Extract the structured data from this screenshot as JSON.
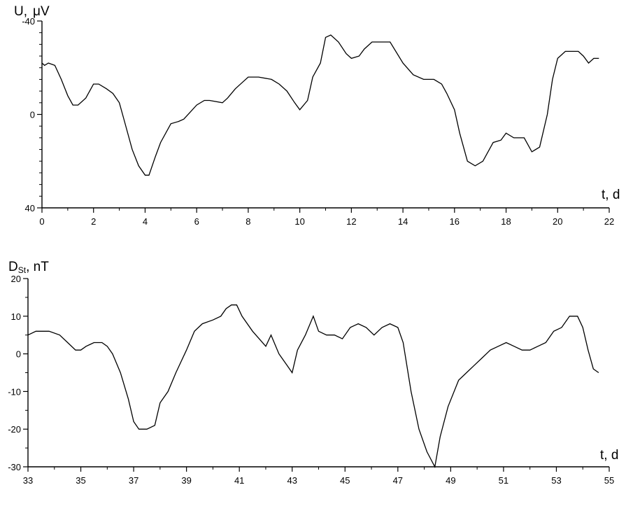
{
  "chart_data": [
    {
      "type": "line",
      "ylabel_main": "U,",
      "ylabel_unit": "μV",
      "xlabel": "t, d",
      "xlim": [
        0,
        22
      ],
      "ylim": [
        40,
        -40
      ],
      "x_ticks": [
        0,
        2,
        4,
        6,
        8,
        10,
        12,
        14,
        16,
        18,
        20,
        22
      ],
      "y_ticks": [
        -40,
        0,
        40
      ],
      "series": [
        {
          "x": [
            0,
            0.1,
            0.25,
            0.5,
            0.75,
            1.0,
            1.2,
            1.4,
            1.7,
            2.0,
            2.2,
            2.5,
            2.75,
            3.0,
            3.2,
            3.5,
            3.75,
            4.0,
            4.15,
            4.4,
            4.6,
            5.0,
            5.3,
            5.5,
            6.0,
            6.3,
            6.5,
            7.0,
            7.2,
            7.5,
            7.8,
            8.0,
            8.4,
            8.9,
            9.2,
            9.5,
            9.8,
            10.0,
            10.3,
            10.5,
            10.8,
            11.0,
            11.2,
            11.5,
            11.8,
            12.0,
            12.3,
            12.5,
            12.8,
            13.5,
            14.0,
            14.4,
            14.8,
            15.2,
            15.5,
            15.7,
            16.0,
            16.2,
            16.5,
            16.8,
            17.1,
            17.5,
            17.8,
            18.0,
            18.3,
            18.7,
            19.0,
            19.3,
            19.6,
            19.8,
            20.0,
            20.3,
            20.5,
            20.8,
            21.0,
            21.2,
            21.4,
            21.6
          ],
          "y": [
            -22,
            -21,
            -22,
            -21,
            -15,
            -8,
            -4,
            -4,
            -7,
            -13,
            -13,
            -11,
            -9,
            -5,
            3,
            15,
            22,
            26,
            26,
            18,
            12,
            4,
            3,
            2,
            -4,
            -6,
            -6,
            -5,
            -7,
            -11,
            -14,
            -16,
            -16,
            -15,
            -13,
            -10,
            -5,
            -2,
            -6,
            -16,
            -22,
            -33,
            -34,
            -31,
            -26,
            -24,
            -25,
            -28,
            -31,
            -31,
            -22,
            -17,
            -15,
            -15,
            -13,
            -9,
            -2,
            8,
            20,
            22,
            20,
            12,
            11,
            8,
            10,
            10,
            16,
            14,
            0,
            -15,
            -24,
            -27,
            -27,
            -27,
            -25,
            -22,
            -24,
            -24
          ]
        }
      ]
    },
    {
      "type": "line",
      "ylabel_main": "D",
      "ylabel_sub": "St",
      "ylabel_rest": ", nT",
      "xlabel": "t, d",
      "xlim": [
        33,
        55
      ],
      "ylim": [
        -30,
        20
      ],
      "x_ticks": [
        33,
        35,
        37,
        39,
        41,
        43,
        45,
        47,
        49,
        51,
        53,
        55
      ],
      "y_ticks": [
        -30,
        -20,
        -10,
        0,
        10,
        20
      ],
      "series": [
        {
          "x": [
            33,
            33.3,
            33.8,
            34.2,
            34.5,
            34.8,
            35.0,
            35.2,
            35.5,
            35.8,
            36.0,
            36.2,
            36.5,
            36.8,
            37.0,
            37.2,
            37.5,
            37.8,
            38.0,
            38.3,
            38.6,
            39.0,
            39.3,
            39.6,
            40.0,
            40.3,
            40.5,
            40.7,
            40.9,
            41.1,
            41.5,
            42.0,
            42.2,
            42.5,
            42.8,
            43.0,
            43.2,
            43.5,
            43.8,
            44.0,
            44.3,
            44.6,
            44.9,
            45.2,
            45.5,
            45.8,
            46.1,
            46.4,
            46.7,
            47.0,
            47.2,
            47.5,
            47.8,
            48.1,
            48.4,
            48.6,
            48.9,
            49.3,
            49.6,
            49.9,
            50.2,
            50.5,
            50.8,
            51.1,
            51.4,
            51.7,
            52.0,
            52.3,
            52.6,
            52.9,
            53.2,
            53.5,
            53.8,
            54.0,
            54.2,
            54.4,
            54.6
          ],
          "y": [
            5,
            6,
            6,
            5,
            3,
            1,
            1,
            2,
            3,
            3,
            2,
            0,
            -5,
            -12,
            -18,
            -20,
            -20,
            -19,
            -13,
            -10,
            -5,
            1,
            6,
            8,
            9,
            10,
            12,
            13,
            13,
            10,
            6,
            2,
            5,
            0,
            -3,
            -5,
            1,
            5,
            10,
            6,
            5,
            5,
            4,
            7,
            8,
            7,
            5,
            7,
            8,
            7,
            3,
            -10,
            -20,
            -26,
            -30,
            -22,
            -14,
            -7,
            -5,
            -3,
            -1,
            1,
            2,
            3,
            2,
            1,
            1,
            2,
            3,
            6,
            7,
            10,
            10,
            7,
            1,
            -4,
            -5
          ]
        }
      ]
    }
  ]
}
